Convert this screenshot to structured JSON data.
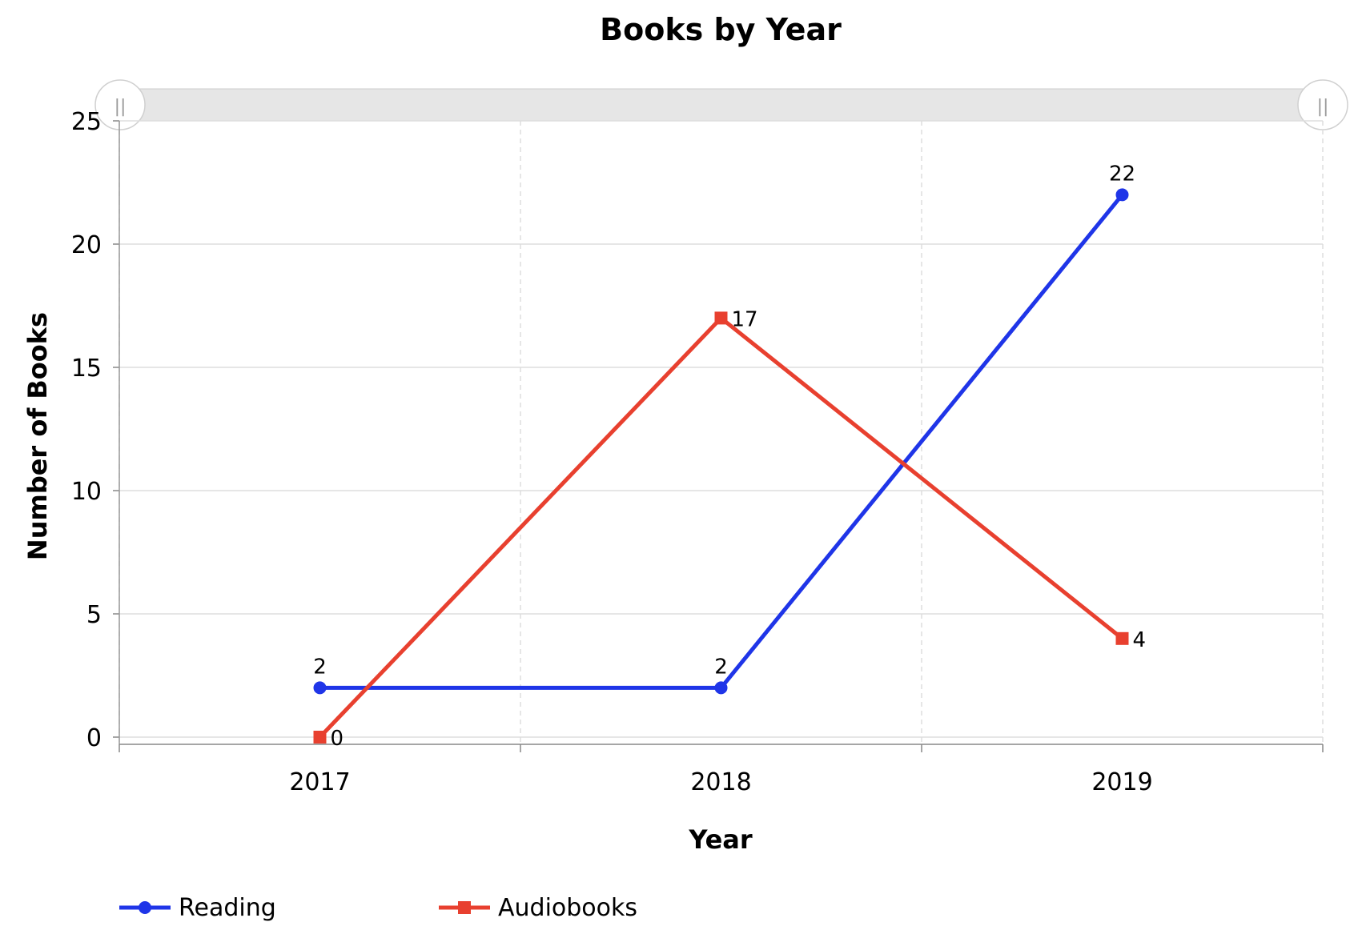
{
  "chart_data": {
    "type": "line",
    "title": "Books by Year",
    "xlabel": "Year",
    "ylabel": "Number of Books",
    "categories": [
      "2017",
      "2018",
      "2019"
    ],
    "ylim": [
      0,
      25
    ],
    "yticks": [
      "0",
      "5",
      "10",
      "15",
      "20",
      "25"
    ],
    "grid": true,
    "legend_position": "bottom-left",
    "series": [
      {
        "name": "Reading",
        "values": [
          2,
          2,
          22
        ],
        "color": "#1f35e8",
        "marker": "circle"
      },
      {
        "name": "Audiobooks",
        "values": [
          0,
          17,
          4
        ],
        "color": "#e8402f",
        "marker": "square"
      }
    ]
  },
  "range_slider": {
    "handle_left_icon": "grip-icon",
    "handle_right_icon": "grip-icon",
    "handle_glyph": "||"
  }
}
